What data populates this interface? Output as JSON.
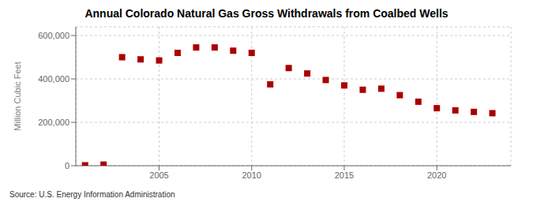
{
  "chart_data": {
    "type": "scatter",
    "title": "Annual Colorado Natural Gas Gross Withdrawals from Coalbed Wells",
    "ylabel": "Million Cubic Feet",
    "annotation": "Source: U.S. Energy Information Administration",
    "x": [
      2001,
      2002,
      2003,
      2004,
      2005,
      2006,
      2007,
      2008,
      2009,
      2010,
      2011,
      2012,
      2013,
      2014,
      2015,
      2016,
      2017,
      2018,
      2019,
      2020,
      2021,
      2022,
      2023
    ],
    "values": [
      2000,
      5000,
      500000,
      490000,
      485000,
      520000,
      545000,
      545000,
      530000,
      520000,
      375000,
      450000,
      425000,
      395000,
      370000,
      350000,
      355000,
      325000,
      295000,
      265000,
      255000,
      248000,
      242000
    ],
    "color": "#aa0000",
    "marker": "square",
    "xlim": [
      2000.5,
      2024.0
    ],
    "xticks": [
      2005,
      2010,
      2015,
      2020
    ],
    "ylim": [
      0,
      640000
    ],
    "yticks": [
      0,
      {
        "value": 200000,
        "label": "200,000"
      },
      {
        "value": 400000,
        "label": "400,000"
      },
      {
        "value": 600000,
        "label": "600,000"
      }
    ],
    "grid": true
  }
}
